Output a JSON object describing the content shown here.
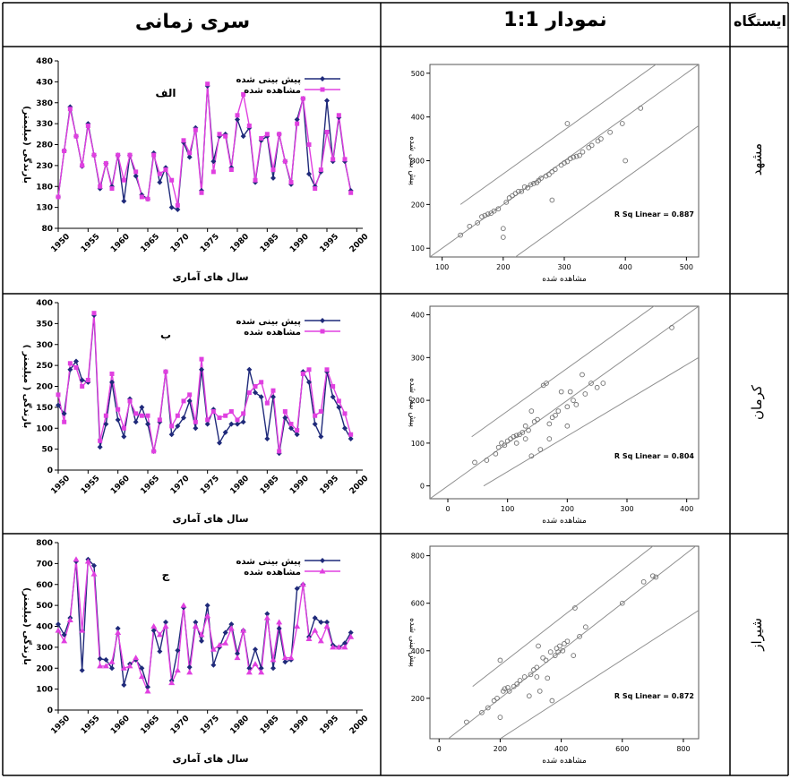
{
  "header": {
    "station": "ایستگاه",
    "plot11": "نمودار 1:1",
    "timeseries": "سری زمانی"
  },
  "colors": {
    "predicted": "#1f2a7a",
    "observed": "#e040e0",
    "line": "#909090",
    "point": "#707070"
  },
  "rows": [
    {
      "station": "مشهد",
      "ts": {
        "letter": "الف",
        "marker": "square",
        "legend_pred": "پیش بینی شده",
        "legend_obs": "مشاهده شده",
        "ylabel": "بارندگی (میلیمتر)",
        "xlabel": "سال های آماری",
        "yticks": [
          480,
          430,
          380,
          330,
          280,
          230,
          180,
          130,
          80
        ],
        "xticks": [
          1950,
          1955,
          1960,
          1965,
          1970,
          1975,
          1980,
          1985,
          1990,
          1995,
          2000
        ],
        "ylim": [
          80,
          480
        ],
        "xlim": [
          1950,
          2001
        ],
        "predicted": [
          155,
          265,
          370,
          300,
          228,
          330,
          255,
          175,
          235,
          180,
          255,
          145,
          255,
          205,
          160,
          150,
          260,
          190,
          225,
          130,
          125,
          285,
          250,
          320,
          170,
          420,
          240,
          300,
          305,
          225,
          340,
          300,
          320,
          190,
          290,
          300,
          200,
          305,
          240,
          185,
          340,
          390,
          210,
          180,
          215,
          385,
          240,
          345,
          240,
          170
        ],
        "observed": [
          155,
          265,
          365,
          300,
          230,
          325,
          255,
          180,
          235,
          175,
          255,
          195,
          255,
          215,
          155,
          150,
          255,
          210,
          220,
          195,
          135,
          290,
          260,
          315,
          165,
          425,
          215,
          305,
          300,
          220,
          350,
          400,
          325,
          195,
          295,
          305,
          220,
          305,
          240,
          190,
          330,
          390,
          280,
          175,
          220,
          310,
          245,
          350,
          245,
          165
        ]
      },
      "scatter": {
        "xticks": [
          100,
          200,
          300,
          400,
          500
        ],
        "yticks": [
          100,
          200,
          300,
          400,
          500
        ],
        "xlim": [
          80,
          520
        ],
        "ylim": [
          80,
          520
        ],
        "xlabel": "مشاهده شده",
        "ylabel": "پیش بینی شده",
        "r2": "R Sq Linear = 0.887",
        "points": [
          [
            130,
            130
          ],
          [
            145,
            150
          ],
          [
            158,
            158
          ],
          [
            165,
            172
          ],
          [
            170,
            175
          ],
          [
            175,
            178
          ],
          [
            185,
            185
          ],
          [
            192,
            190
          ],
          [
            200,
            145
          ],
          [
            200,
            125
          ],
          [
            205,
            205
          ],
          [
            210,
            215
          ],
          [
            215,
            220
          ],
          [
            220,
            225
          ],
          [
            225,
            230
          ],
          [
            230,
            230
          ],
          [
            235,
            240
          ],
          [
            245,
            245
          ],
          [
            250,
            248
          ],
          [
            255,
            250
          ],
          [
            258,
            255
          ],
          [
            262,
            260
          ],
          [
            270,
            265
          ],
          [
            275,
            268
          ],
          [
            280,
            210
          ],
          [
            280,
            275
          ],
          [
            285,
            280
          ],
          [
            295,
            290
          ],
          [
            300,
            295
          ],
          [
            305,
            298
          ],
          [
            310,
            305
          ],
          [
            315,
            308
          ],
          [
            320,
            310
          ],
          [
            325,
            312
          ],
          [
            330,
            320
          ],
          [
            340,
            330
          ],
          [
            345,
            335
          ],
          [
            355,
            345
          ],
          [
            360,
            350
          ],
          [
            375,
            365
          ],
          [
            395,
            385
          ],
          [
            400,
            300
          ],
          [
            425,
            420
          ],
          [
            305,
            385
          ],
          [
            180,
            180
          ],
          [
            240,
            238
          ]
        ],
        "lines": [
          [
            [
              130,
              200
            ],
            [
              520,
              590
            ]
          ],
          [
            [
              80,
              80
            ],
            [
              520,
              520
            ]
          ],
          [
            [
              140,
              0
            ],
            [
              520,
              380
            ]
          ]
        ]
      }
    },
    {
      "station": "کرمان",
      "ts": {
        "letter": "ب",
        "marker": "square",
        "legend_pred": "پیش بینی شده",
        "legend_obs": "مشاهده شده",
        "ylabel": "بارندگی ( میلیمتر )",
        "xlabel": "سال های آماری",
        "yticks": [
          400,
          350,
          300,
          250,
          200,
          150,
          100,
          50,
          0
        ],
        "xticks": [
          1950,
          1955,
          1960,
          1965,
          1970,
          1975,
          1980,
          1985,
          1990,
          1995,
          2000
        ],
        "ylim": [
          0,
          400
        ],
        "xlim": [
          1950,
          2001
        ],
        "predicted": [
          155,
          135,
          240,
          260,
          215,
          210,
          370,
          55,
          110,
          210,
          120,
          80,
          170,
          115,
          150,
          110,
          45,
          115,
          235,
          85,
          105,
          125,
          165,
          100,
          240,
          110,
          145,
          65,
          90,
          110,
          110,
          115,
          240,
          185,
          175,
          75,
          175,
          40,
          125,
          100,
          85,
          235,
          210,
          110,
          80,
          235,
          175,
          150,
          100,
          75
        ],
        "observed": [
          180,
          115,
          255,
          245,
          200,
          215,
          375,
          70,
          130,
          230,
          145,
          100,
          165,
          135,
          130,
          130,
          45,
          120,
          235,
          105,
          130,
          165,
          180,
          115,
          265,
          120,
          140,
          125,
          130,
          140,
          120,
          135,
          185,
          200,
          210,
          160,
          190,
          45,
          140,
          110,
          95,
          230,
          240,
          130,
          140,
          240,
          200,
          165,
          135,
          85
        ]
      },
      "scatter": {
        "xticks": [
          0,
          100,
          200,
          300,
          400
        ],
        "yticks": [
          0,
          100,
          200,
          300,
          400
        ],
        "xlim": [
          -30,
          420
        ],
        "ylim": [
          -30,
          420
        ],
        "xlabel": "مشاهده شده",
        "ylabel": "پیش بینی شده",
        "r2": "R Sq Linear = 0.804",
        "points": [
          [
            45,
            55
          ],
          [
            65,
            60
          ],
          [
            80,
            75
          ],
          [
            85,
            90
          ],
          [
            90,
            100
          ],
          [
            95,
            95
          ],
          [
            100,
            105
          ],
          [
            105,
            110
          ],
          [
            110,
            115
          ],
          [
            115,
            118
          ],
          [
            120,
            120
          ],
          [
            125,
            125
          ],
          [
            130,
            110
          ],
          [
            130,
            140
          ],
          [
            135,
            130
          ],
          [
            140,
            70
          ],
          [
            145,
            150
          ],
          [
            150,
            155
          ],
          [
            155,
            85
          ],
          [
            160,
            235
          ],
          [
            165,
            240
          ],
          [
            170,
            145
          ],
          [
            175,
            160
          ],
          [
            180,
            165
          ],
          [
            185,
            175
          ],
          [
            190,
            220
          ],
          [
            200,
            185
          ],
          [
            205,
            220
          ],
          [
            210,
            200
          ],
          [
            215,
            190
          ],
          [
            225,
            260
          ],
          [
            230,
            215
          ],
          [
            240,
            240
          ],
          [
            250,
            230
          ],
          [
            260,
            240
          ],
          [
            375,
            370
          ],
          [
            115,
            100
          ],
          [
            140,
            175
          ],
          [
            170,
            110
          ],
          [
            200,
            140
          ]
        ],
        "lines": [
          [
            [
              -30,
              -30
            ],
            [
              420,
              420
            ]
          ],
          [
            [
              40,
              115
            ],
            [
              420,
              495
            ]
          ],
          [
            [
              60,
              0
            ],
            [
              420,
              300
            ]
          ]
        ]
      }
    },
    {
      "station": "شیراز",
      "ts": {
        "letter": "ج",
        "marker": "triangle",
        "legend_pred": "پیش بینی شده",
        "legend_obs": "مشاهده شده",
        "ylabel": "بارندگی (میلیمتر)",
        "xlabel": "سال های آماری",
        "yticks": [
          800,
          700,
          600,
          500,
          400,
          300,
          200,
          100,
          0
        ],
        "xticks": [
          1950,
          1955,
          1960,
          1965,
          1970,
          1975,
          1980,
          1985,
          1990,
          1995,
          2000
        ],
        "ylim": [
          0,
          800
        ],
        "xlim": [
          1950,
          2001
        ],
        "predicted": [
          410,
          360,
          440,
          710,
          190,
          720,
          690,
          245,
          240,
          200,
          390,
          120,
          220,
          240,
          200,
          110,
          380,
          280,
          420,
          140,
          285,
          490,
          205,
          420,
          330,
          500,
          215,
          300,
          370,
          410,
          270,
          380,
          200,
          290,
          200,
          460,
          200,
          390,
          230,
          240,
          580,
          600,
          350,
          440,
          420,
          420,
          310,
          300,
          320,
          370
        ],
        "observed": [
          380,
          330,
          430,
          720,
          380,
          710,
          650,
          210,
          210,
          230,
          370,
          200,
          210,
          250,
          160,
          90,
          400,
          360,
          400,
          130,
          190,
          500,
          180,
          400,
          360,
          450,
          290,
          310,
          320,
          390,
          250,
          380,
          180,
          220,
          180,
          440,
          240,
          420,
          250,
          250,
          400,
          600,
          340,
          380,
          330,
          400,
          300,
          300,
          300,
          350
        ]
      },
      "scatter": {
        "xticks": [
          0,
          200,
          400,
          600,
          800
        ],
        "yticks": [
          200,
          400,
          600,
          800
        ],
        "xlim": [
          -30,
          850
        ],
        "ylim": [
          30,
          840
        ],
        "xlabel": "مشاهده شده",
        "ylabel": "پیش بینی شده",
        "r2": "R Sq Linear = 0.872",
        "points": [
          [
            90,
            100
          ],
          [
            140,
            140
          ],
          [
            160,
            160
          ],
          [
            180,
            190
          ],
          [
            190,
            200
          ],
          [
            200,
            120
          ],
          [
            200,
            360
          ],
          [
            210,
            230
          ],
          [
            215,
            240
          ],
          [
            225,
            245
          ],
          [
            230,
            230
          ],
          [
            245,
            250
          ],
          [
            255,
            260
          ],
          [
            265,
            275
          ],
          [
            280,
            290
          ],
          [
            295,
            210
          ],
          [
            300,
            300
          ],
          [
            310,
            320
          ],
          [
            320,
            330
          ],
          [
            325,
            420
          ],
          [
            330,
            230
          ],
          [
            340,
            370
          ],
          [
            350,
            360
          ],
          [
            355,
            285
          ],
          [
            365,
            395
          ],
          [
            370,
            190
          ],
          [
            380,
            380
          ],
          [
            385,
            410
          ],
          [
            390,
            395
          ],
          [
            395,
            420
          ],
          [
            405,
            400
          ],
          [
            420,
            440
          ],
          [
            440,
            380
          ],
          [
            445,
            580
          ],
          [
            460,
            460
          ],
          [
            480,
            500
          ],
          [
            600,
            600
          ],
          [
            670,
            690
          ],
          [
            700,
            715
          ],
          [
            710,
            710
          ],
          [
            320,
            290
          ],
          [
            410,
            430
          ]
        ],
        "lines": [
          [
            [
              -30,
              -30
            ],
            [
              850,
              850
            ]
          ],
          [
            [
              110,
              250
            ],
            [
              850,
              990
            ]
          ],
          [
            [
              200,
              30
            ],
            [
              850,
              570
            ]
          ]
        ]
      }
    }
  ]
}
